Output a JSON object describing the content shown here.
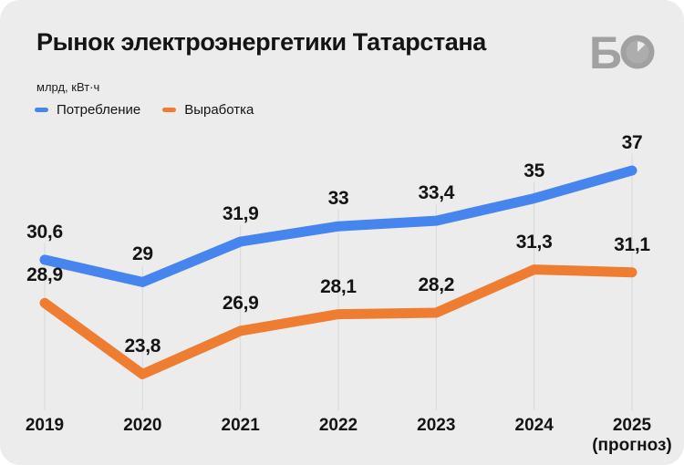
{
  "card": {
    "title": "Рынок электроэнергетики Татарстана",
    "units_label": "млрд, кВт·ч",
    "logo": {
      "letter": "Б",
      "description": "business-online-clock-logo",
      "color": "#a1a1a1"
    }
  },
  "legend": {
    "items": [
      {
        "label": "Потребление",
        "color": "#4684ee"
      },
      {
        "label": "Выработка",
        "color": "#ee7d32"
      }
    ]
  },
  "chart_data": {
    "type": "line",
    "title": "Рынок электроэнергетики Татарстана",
    "ylabel": "млрд, кВт·ч",
    "categories": [
      "2019",
      "2020",
      "2021",
      "2022",
      "2023",
      "2024",
      "2025 (прогноз)"
    ],
    "x_tick_lines": [
      [
        "2019"
      ],
      [
        "2020"
      ],
      [
        "2021"
      ],
      [
        "2022"
      ],
      [
        "2023"
      ],
      [
        "2024"
      ],
      [
        "2025",
        "(прогноз)"
      ]
    ],
    "series": [
      {
        "name": "Потребление",
        "color": "#4684ee",
        "values": [
          30.6,
          29,
          31.9,
          33,
          33.4,
          35,
          37
        ],
        "point_labels": [
          "30,6",
          "29",
          "31,9",
          "33",
          "33,4",
          "35",
          "37"
        ]
      },
      {
        "name": "Выработка",
        "color": "#ee7d32",
        "values": [
          28.9,
          23.8,
          26.9,
          28.1,
          28.2,
          31.3,
          31.1
        ],
        "point_labels": [
          "28,9",
          "23,8",
          "26,9",
          "28,1",
          "28,2",
          "31,3",
          "31,1"
        ]
      }
    ],
    "grid": "vertical-only",
    "y_axis_visible": false,
    "legend_position": "top-left",
    "note": "2025 is forecast (прогноз)"
  },
  "theme": {
    "page_bg": "#ffffff",
    "card_bg": "#ececec",
    "text": "#141414",
    "gridline": "#d8d8d8",
    "logo_gray": "#a1a1a1"
  }
}
